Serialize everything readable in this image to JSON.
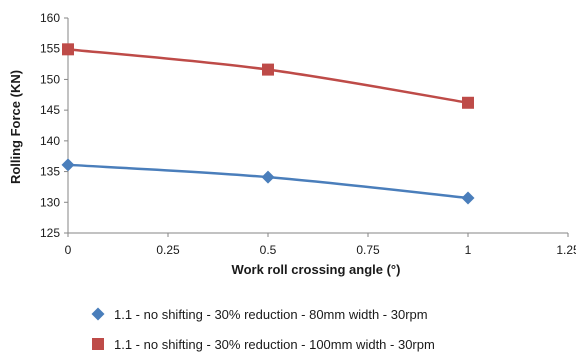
{
  "chart_data": {
    "type": "line",
    "title": "",
    "xlabel": "Work roll crossing angle (°)",
    "ylabel": "Rolling Force (KN)",
    "xlim": [
      0,
      1.25
    ],
    "ylim": [
      125,
      160
    ],
    "xticks": [
      0,
      0.25,
      0.5,
      0.75,
      1,
      1.25
    ],
    "yticks": [
      125,
      130,
      135,
      140,
      145,
      150,
      155,
      160
    ],
    "xtick_labels": [
      "0",
      "0.25",
      "0.5",
      "0.75",
      "1",
      "1.25"
    ],
    "ytick_labels": [
      "125",
      "130",
      "135",
      "140",
      "145",
      "150",
      "155",
      "160"
    ],
    "grid": false,
    "legend_position": "bottom",
    "series": [
      {
        "name": "1.1 - no shifting - 30% reduction - 80mm width - 30rpm",
        "x": [
          0,
          0.5,
          1
        ],
        "y": [
          136.1,
          134.1,
          130.7
        ],
        "color": "#4a7ebb",
        "marker": "diamond"
      },
      {
        "name": "1.1 - no shifting - 30% reduction - 100mm width - 30rpm",
        "x": [
          0,
          0.5,
          1
        ],
        "y": [
          154.9,
          151.6,
          146.2
        ],
        "color": "#be4b48",
        "marker": "square"
      }
    ]
  }
}
